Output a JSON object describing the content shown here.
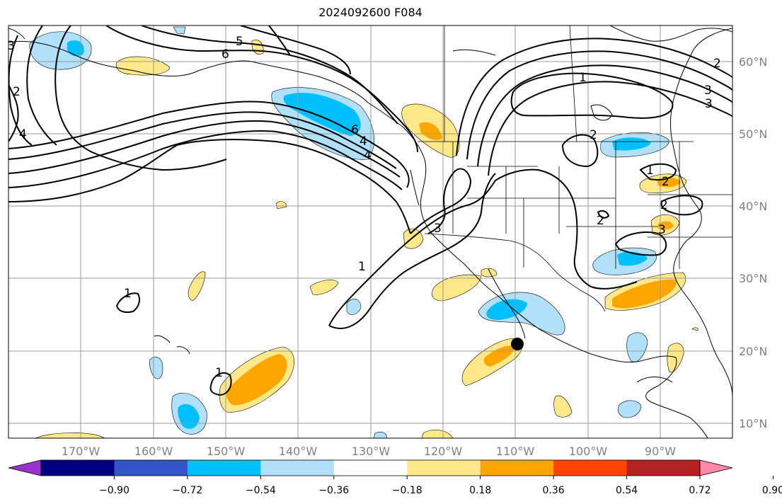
{
  "title": "2024092600 F084",
  "lat_labels": [
    "60°N",
    "50°N",
    "40°N",
    "30°N",
    "20°N",
    "10°N"
  ],
  "lon_labels": [
    "170°W",
    "160°W",
    "150°W",
    "140°W",
    "130°W",
    "120°W",
    "110°W",
    "100°W",
    "90°W"
  ],
  "colorbar": {
    "colors": [
      "#9933cc",
      "#000080",
      "#3355cc",
      "#00bfff",
      "#b0e0fa",
      "#ffffff",
      "#ffe88a",
      "#ffa500",
      "#ff4500",
      "#b22222",
      "#ff88aa"
    ],
    "tick_labels": [
      "−0.90",
      "−0.72",
      "−0.54",
      "−0.36",
      "−0.18",
      "0.18",
      "0.36",
      "0.54",
      "0.72",
      "0.90"
    ]
  },
  "contour_labels": [
    "5",
    "6",
    "2",
    "4",
    "6",
    "4",
    "1",
    "2",
    "3",
    "3",
    "3",
    "2",
    "2",
    "3",
    "1",
    "1",
    "1",
    "2",
    "3",
    "1",
    "2",
    "4"
  ]
}
